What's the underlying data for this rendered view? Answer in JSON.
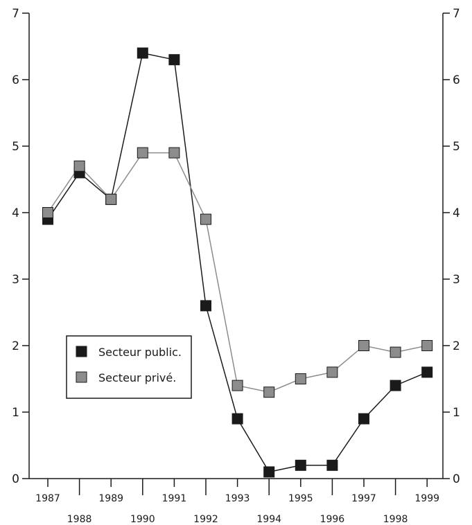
{
  "chart_data": {
    "type": "line",
    "title": "",
    "xlabel": "",
    "ylabel": "",
    "x": [
      "1987",
      "1988",
      "1989",
      "1990",
      "1991",
      "1992",
      "1993",
      "1994",
      "1995",
      "1996",
      "1997",
      "1998",
      "1999"
    ],
    "ylim": [
      0,
      7
    ],
    "yticks": [
      "0",
      "1",
      "2",
      "3",
      "4",
      "5",
      "6",
      "7"
    ],
    "grid": false,
    "legend_position": "middle-left",
    "series": [
      {
        "name": "Secteur public.",
        "color": "#1a1a1a",
        "marker": "square",
        "values": [
          3.9,
          4.6,
          4.2,
          6.4,
          6.3,
          2.6,
          0.9,
          0.1,
          0.2,
          0.2,
          0.9,
          1.4,
          1.6
        ]
      },
      {
        "name": "Secteur privé.",
        "color": "#8c8c8c",
        "marker": "square",
        "values": [
          4.0,
          4.7,
          4.2,
          4.9,
          4.9,
          3.9,
          1.4,
          1.3,
          1.5,
          1.6,
          2.0,
          1.9,
          2.0
        ]
      }
    ]
  }
}
